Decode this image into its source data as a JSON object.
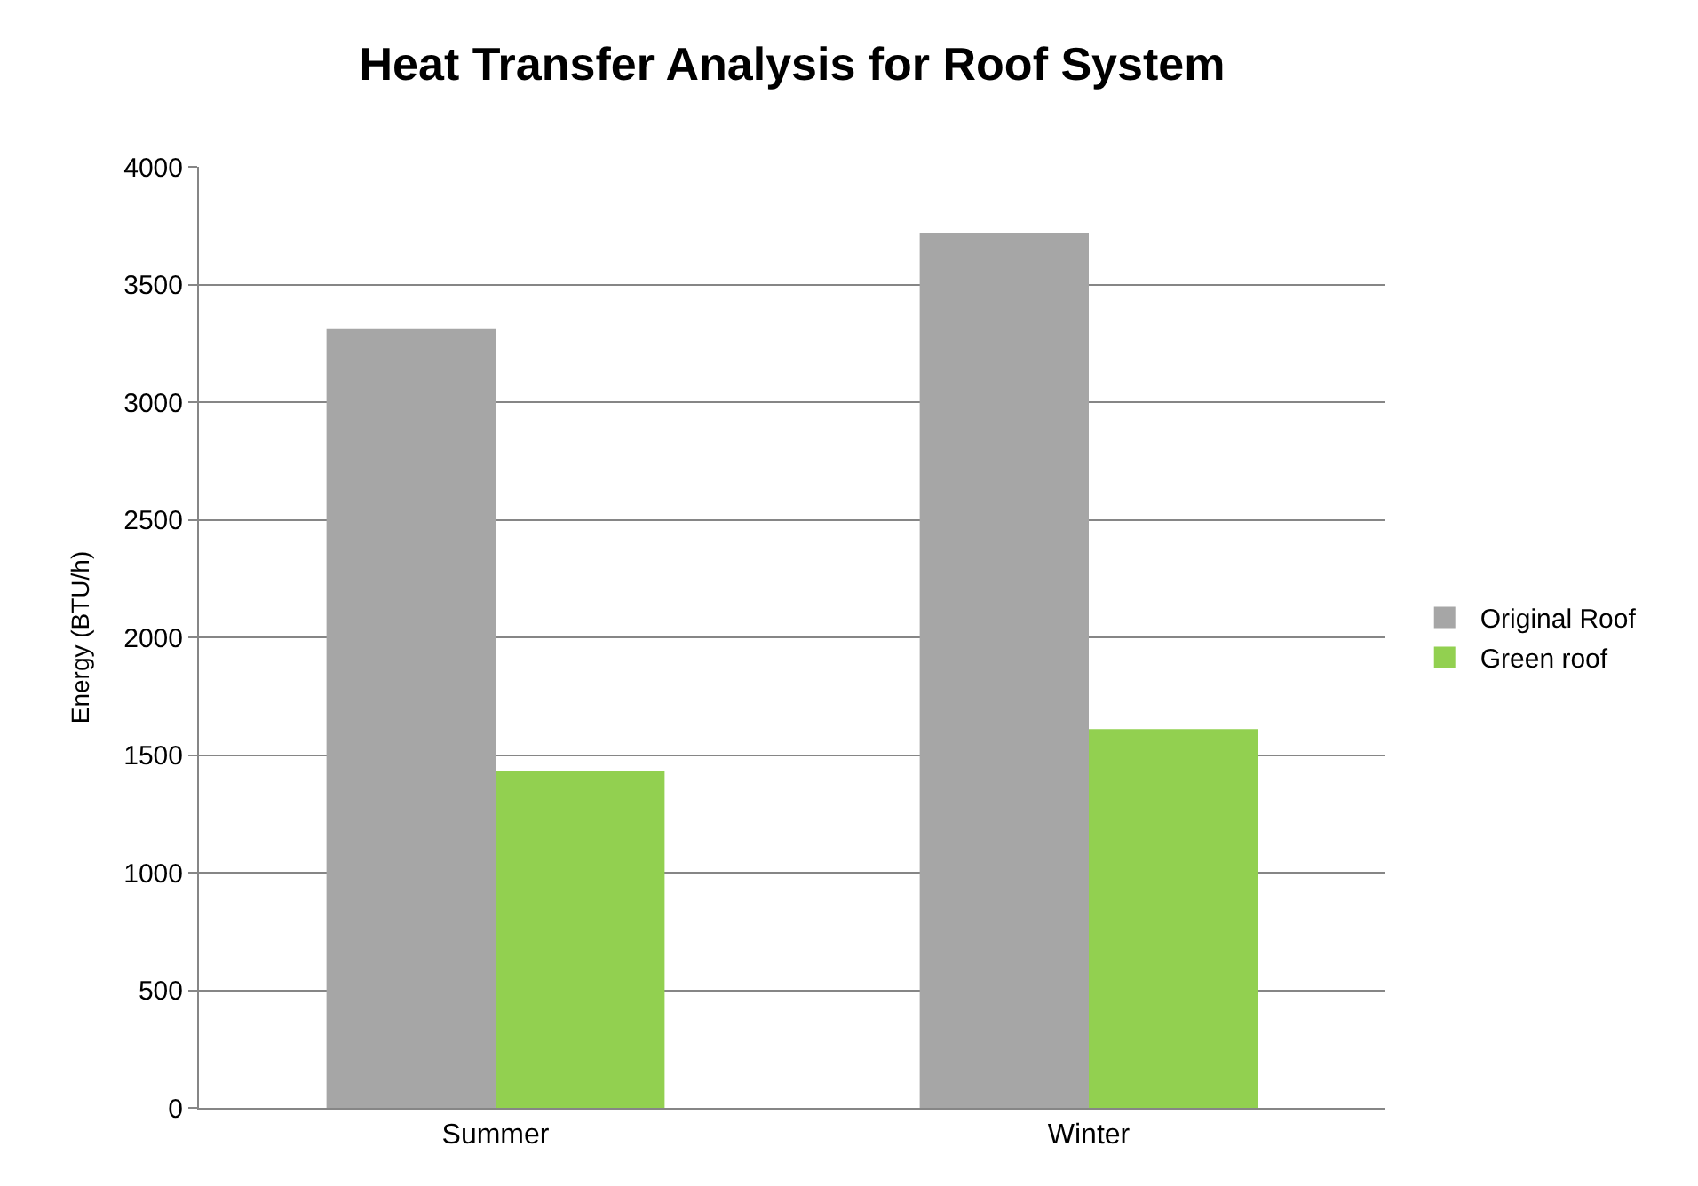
{
  "chart_data": {
    "type": "bar",
    "title": "Heat Transfer Analysis for Roof System",
    "ylabel": "Energy (BTU/h)",
    "categories": [
      "Summer",
      "Winter"
    ],
    "series": [
      {
        "name": "Original Roof",
        "color": "#a6a6a6",
        "values": [
          3310,
          3720
        ]
      },
      {
        "name": "Green roof",
        "color": "#92d050",
        "values": [
          1430,
          1610
        ]
      }
    ],
    "ylim": [
      0,
      4000
    ],
    "yticks": [
      0,
      500,
      1000,
      1500,
      2000,
      2500,
      3000,
      3500,
      4000
    ],
    "grid": "y",
    "legend": "right"
  }
}
